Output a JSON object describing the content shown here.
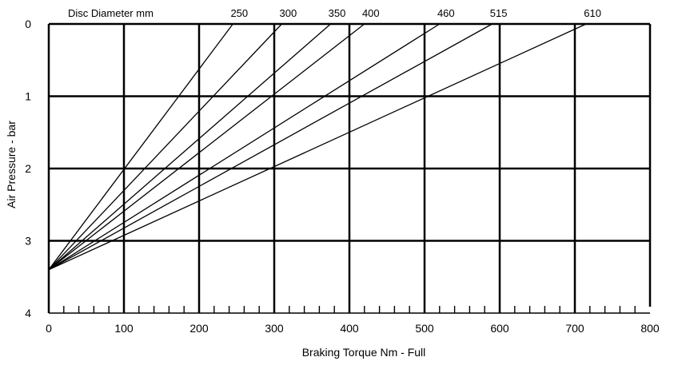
{
  "chart_data": {
    "type": "line",
    "header_label": "Disc Diameter mm",
    "xlabel": "Braking Torque Nm - Full",
    "ylabel": "Air Pressure - bar",
    "xlim": [
      0,
      800
    ],
    "ylim": [
      4,
      0
    ],
    "y_inverted": true,
    "grid": true,
    "x_ticks": [
      "0",
      "100",
      "200",
      "300",
      "400",
      "500",
      "600",
      "700",
      "800"
    ],
    "y_ticks": [
      "0",
      "1",
      "2",
      "3",
      "4"
    ],
    "x_minor_step": 20,
    "origin_point": {
      "x": 0,
      "y": 3.4
    },
    "series": [
      {
        "name": "250",
        "points": [
          {
            "x": 0,
            "y": 3.4
          },
          {
            "x": 245,
            "y": 0
          }
        ]
      },
      {
        "name": "300",
        "points": [
          {
            "x": 0,
            "y": 3.4
          },
          {
            "x": 310,
            "y": 0
          }
        ]
      },
      {
        "name": "350",
        "points": [
          {
            "x": 0,
            "y": 3.4
          },
          {
            "x": 375,
            "y": 0
          }
        ]
      },
      {
        "name": "400",
        "points": [
          {
            "x": 0,
            "y": 3.4
          },
          {
            "x": 420,
            "y": 0
          }
        ]
      },
      {
        "name": "460",
        "points": [
          {
            "x": 0,
            "y": 3.4
          },
          {
            "x": 520,
            "y": 0
          }
        ]
      },
      {
        "name": "515",
        "points": [
          {
            "x": 0,
            "y": 3.4
          },
          {
            "x": 590,
            "y": 0
          }
        ]
      },
      {
        "name": "610",
        "points": [
          {
            "x": 0,
            "y": 3.4
          },
          {
            "x": 715,
            "y": 0
          }
        ]
      }
    ]
  }
}
